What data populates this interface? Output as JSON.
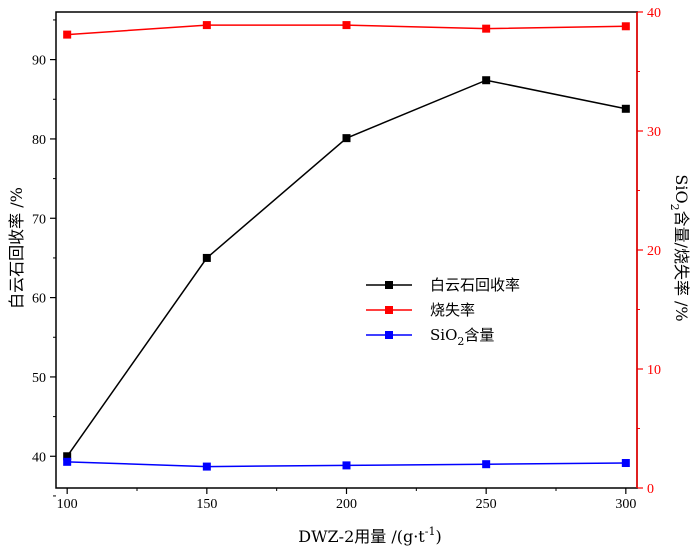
{
  "chart_data": {
    "type": "line",
    "x": [
      100,
      150,
      200,
      250,
      300
    ],
    "xlabel": "DWZ-2用量 /(g·t",
    "xlabel_sup": "-1",
    "xlabel_end": ")",
    "ylabel_left": "白云石回收率 /%",
    "ylabel_right": "SiO",
    "ylabel_right_sub": "2",
    "ylabel_right_end": "含量/烧失率 /%",
    "xlim": [
      96,
      304
    ],
    "ylim_left": [
      36,
      96
    ],
    "ylim_right": [
      0,
      40
    ],
    "xticks": [
      100,
      150,
      200,
      250,
      300
    ],
    "yticks_left": [
      40,
      50,
      60,
      70,
      80,
      90
    ],
    "yticks_right": [
      0,
      10,
      20,
      30,
      40
    ],
    "legend_position": "center-right",
    "series": [
      {
        "name": "白云石回收率",
        "axis": "left",
        "color": "#000000",
        "values": [
          40.0,
          65.0,
          80.1,
          87.4,
          83.8
        ]
      },
      {
        "name": "烧失率",
        "axis": "right",
        "color": "#ff0000",
        "values": [
          38.1,
          38.9,
          38.9,
          38.6,
          38.8
        ]
      },
      {
        "name": "SiO",
        "name_sub": "2",
        "name_end": "含量",
        "axis": "right",
        "color": "#0000ff",
        "values": [
          2.2,
          1.8,
          1.9,
          2.0,
          2.1
        ]
      }
    ]
  },
  "colors": {
    "left_axis": "#000000",
    "right_axis": "#ff0000"
  }
}
